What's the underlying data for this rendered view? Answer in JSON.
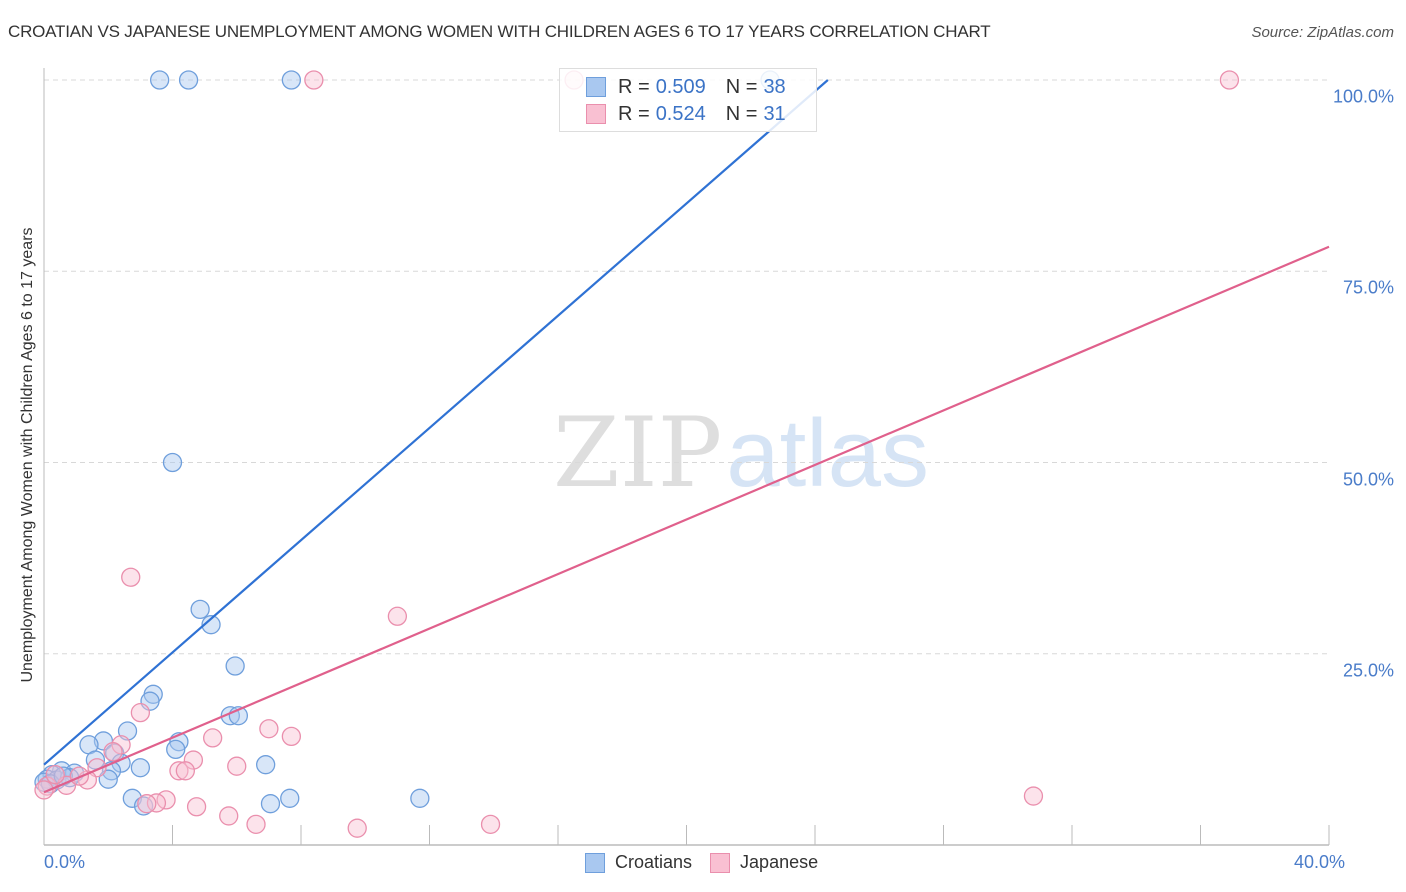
{
  "header": {
    "title": "CROATIAN VS JAPANESE UNEMPLOYMENT AMONG WOMEN WITH CHILDREN AGES 6 TO 17 YEARS CORRELATION CHART",
    "source": "Source: ZipAtlas.com"
  },
  "watermark": {
    "zip": "ZIP",
    "atlas": "atlas"
  },
  "legend": {
    "rows": [
      {
        "series": "Croatians",
        "r_label": "R =",
        "r_value": "0.509",
        "n_label": "N =",
        "n_value": "38",
        "color": "#a9c8f0",
        "border": "#6f9fdc"
      },
      {
        "series": "Japanese",
        "r_label": "R =",
        "r_value": "0.524",
        "n_label": "N =",
        "n_value": "31",
        "color": "#f9c0d2",
        "border": "#ea8fad"
      }
    ]
  },
  "bottom_legend": [
    {
      "label": "Croatians",
      "color": "#a9c8f0",
      "border": "#6f9fdc"
    },
    {
      "label": "Japanese",
      "color": "#f9c0d2",
      "border": "#ea8fad"
    }
  ],
  "axes": {
    "ylabel": "Unemployment Among Women with Children Ages 6 to 17 years",
    "x_ticks": [
      {
        "label": "0.0%",
        "value": 0
      },
      {
        "label": "40.0%",
        "value": 40
      }
    ],
    "y_ticks": [
      {
        "label": "100.0%",
        "value": 100
      },
      {
        "label": "75.0%",
        "value": 75
      },
      {
        "label": "50.0%",
        "value": 50
      },
      {
        "label": "25.0%",
        "value": 25
      }
    ]
  },
  "colors": {
    "blue_fill": "rgba(169,200,240,0.45)",
    "blue_stroke": "#6f9fdc",
    "blue_line": "#2f72d4",
    "pink_fill": "rgba(249,192,210,0.45)",
    "pink_stroke": "#ea8fad",
    "pink_line": "#e0608c",
    "grid": "#d8d8d8",
    "axis": "#bbbbbb"
  },
  "chart_data": {
    "type": "scatter",
    "title": "CROATIAN VS JAPANESE UNEMPLOYMENT AMONG WOMEN WITH CHILDREN AGES 6 TO 17 YEARS CORRELATION CHART",
    "xlabel": "",
    "ylabel": "Unemployment Among Women with Children Ages 6 to 17 years",
    "xlim": [
      0,
      40
    ],
    "ylim": [
      0,
      100
    ],
    "x_tick_labels": [
      "0.0%",
      "40.0%"
    ],
    "y_tick_labels": [
      "25.0%",
      "50.0%",
      "75.0%",
      "100.0%"
    ],
    "grid": true,
    "legend_position": "top-center",
    "series": [
      {
        "name": "Croatians",
        "R": 0.509,
        "N": 38,
        "trendline": {
          "x": [
            0,
            24.4
          ],
          "y": [
            10.5,
            100
          ]
        },
        "points": [
          [
            3.6,
            100
          ],
          [
            4.5,
            100
          ],
          [
            7.7,
            100
          ],
          [
            22.6,
            100
          ],
          [
            4.0,
            50.0
          ],
          [
            4.86,
            30.8
          ],
          [
            5.2,
            28.8
          ],
          [
            5.95,
            23.4
          ],
          [
            3.4,
            19.7
          ],
          [
            3.3,
            18.8
          ],
          [
            5.8,
            16.9
          ],
          [
            6.05,
            16.9
          ],
          [
            2.6,
            14.9
          ],
          [
            1.85,
            13.6
          ],
          [
            1.4,
            13.1
          ],
          [
            4.2,
            13.5
          ],
          [
            4.1,
            12.5
          ],
          [
            2.2,
            12.0
          ],
          [
            1.6,
            11.1
          ],
          [
            2.4,
            10.7
          ],
          [
            6.9,
            10.5
          ],
          [
            3.0,
            10.1
          ],
          [
            2.1,
            9.7
          ],
          [
            0.55,
            9.7
          ],
          [
            0.95,
            9.4
          ],
          [
            0.25,
            9.2
          ],
          [
            0.1,
            8.6
          ],
          [
            0.0,
            8.2
          ],
          [
            2.0,
            8.6
          ],
          [
            2.75,
            6.1
          ],
          [
            3.1,
            5.1
          ],
          [
            7.05,
            5.4
          ],
          [
            7.65,
            6.1
          ],
          [
            11.7,
            6.1
          ],
          [
            0.4,
            8.5
          ],
          [
            0.8,
            8.8
          ],
          [
            0.2,
            8.0
          ],
          [
            0.6,
            9.0
          ]
        ]
      },
      {
        "name": "Japanese",
        "R": 0.524,
        "N": 31,
        "trendline": {
          "x": [
            0,
            40
          ],
          "y": [
            6.9,
            78.2
          ]
        },
        "points": [
          [
            16.5,
            100
          ],
          [
            8.4,
            100
          ],
          [
            36.9,
            100
          ],
          [
            2.7,
            35.0
          ],
          [
            11.0,
            29.9
          ],
          [
            3.0,
            17.3
          ],
          [
            7.0,
            15.2
          ],
          [
            7.7,
            14.2
          ],
          [
            5.25,
            14.0
          ],
          [
            2.4,
            13.1
          ],
          [
            2.15,
            12.2
          ],
          [
            4.65,
            11.1
          ],
          [
            6.0,
            10.3
          ],
          [
            4.2,
            9.7
          ],
          [
            4.4,
            9.7
          ],
          [
            1.65,
            10.1
          ],
          [
            1.35,
            8.5
          ],
          [
            0.7,
            7.8
          ],
          [
            3.8,
            5.9
          ],
          [
            3.5,
            5.5
          ],
          [
            4.75,
            5.0
          ],
          [
            5.75,
            3.8
          ],
          [
            6.6,
            2.7
          ],
          [
            9.75,
            2.2
          ],
          [
            13.9,
            2.7
          ],
          [
            30.8,
            6.4
          ],
          [
            3.2,
            5.4
          ],
          [
            0.1,
            7.7
          ],
          [
            0.35,
            9.2
          ],
          [
            1.1,
            9.0
          ],
          [
            0.0,
            7.2
          ]
        ]
      }
    ]
  }
}
